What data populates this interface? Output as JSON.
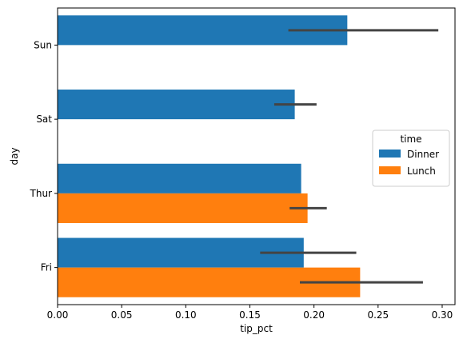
{
  "chart_data": {
    "type": "bar",
    "orientation": "horizontal",
    "categories": [
      "Sun",
      "Sat",
      "Thur",
      "Fri"
    ],
    "series": [
      {
        "name": "Dinner",
        "color": "#1f77b4",
        "values": [
          0.226,
          0.185,
          0.19,
          0.192
        ],
        "ci_low": [
          0.18,
          0.169,
          null,
          0.158
        ],
        "ci_high": [
          0.297,
          0.202,
          null,
          0.233
        ]
      },
      {
        "name": "Lunch",
        "color": "#ff7f0e",
        "values": [
          null,
          null,
          0.195,
          0.236
        ],
        "ci_low": [
          null,
          null,
          0.181,
          0.189
        ],
        "ci_high": [
          null,
          null,
          0.21,
          0.285
        ]
      }
    ],
    "xlabel": "tip_pct",
    "ylabel": "day",
    "xlim": [
      0,
      0.31
    ],
    "xticks": [
      "0.00",
      "0.05",
      "0.10",
      "0.15",
      "0.20",
      "0.25",
      "0.30"
    ],
    "grid": false,
    "legend": {
      "title": "time",
      "placement": "center-right",
      "entries": [
        "Dinner",
        "Lunch"
      ]
    },
    "errorbar_color": "#444444"
  }
}
